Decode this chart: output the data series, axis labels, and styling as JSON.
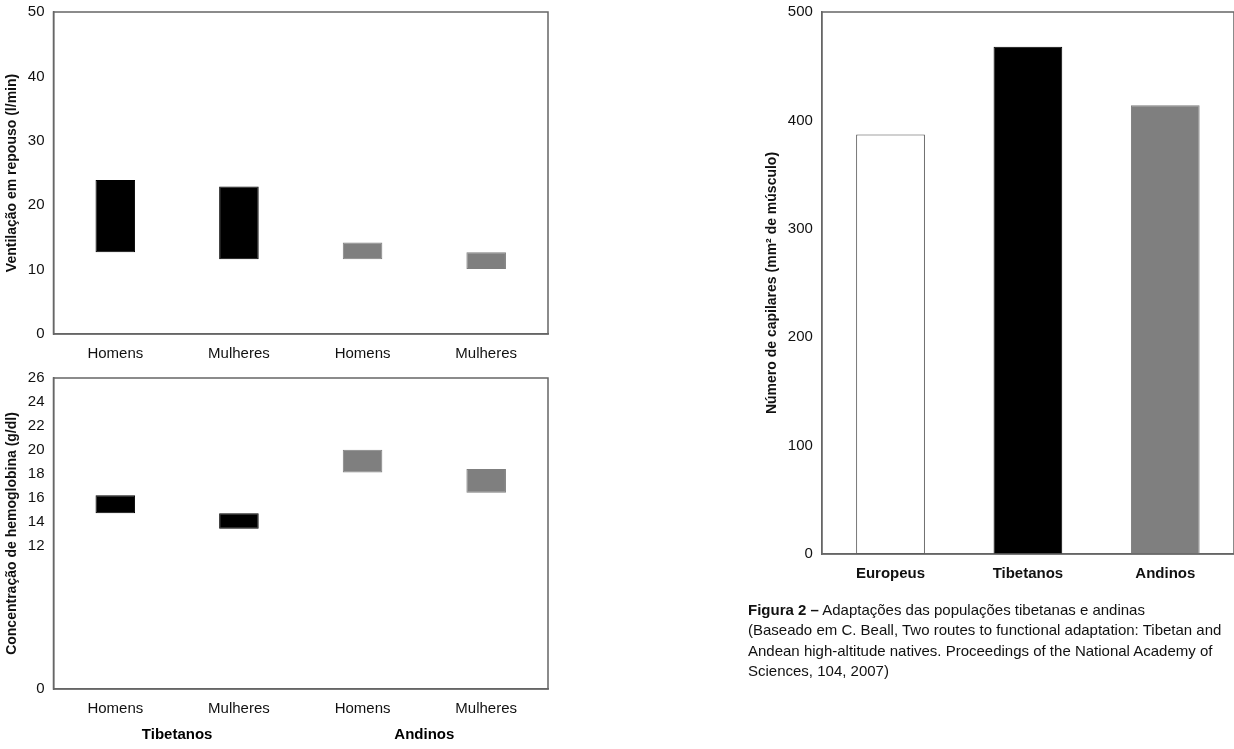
{
  "chart_data": [
    {
      "type": "bar",
      "ylabel": "Ventilação em repouso (l/min)",
      "categories": [
        "Homens",
        "Mulheres",
        "Homens",
        "Mulheres"
      ],
      "base": [
        12.7,
        11.6,
        11.6,
        10.1
      ],
      "values": [
        11.2,
        11.3,
        2.6,
        2.6
      ],
      "colors": [
        "#000000",
        "#000000",
        "#7f7f7f",
        "#7f7f7f"
      ],
      "ylim": [
        0,
        50
      ],
      "yticks": [
        0,
        10,
        20,
        30,
        40,
        50
      ],
      "grid": false,
      "legend": false
    },
    {
      "type": "bar",
      "ylabel": "Concentração de hemoglobina (g/dl)",
      "categories": [
        "Homens",
        "Mulheres",
        "Homens",
        "Mulheres"
      ],
      "base": [
        14.7,
        13.4,
        18.1,
        16.4
      ],
      "values": [
        1.5,
        1.3,
        1.9,
        2.0
      ],
      "colors": [
        "#000000",
        "#000000",
        "#7f7f7f",
        "#7f7f7f"
      ],
      "ylim": [
        0,
        26
      ],
      "yticks": [
        0,
        12,
        14,
        16,
        18,
        20,
        22,
        24,
        26
      ],
      "grid": false,
      "legend": false,
      "annotations": [
        "Tibetanos",
        "Andinos"
      ]
    },
    {
      "type": "bar",
      "ylabel": "Número de capilares (mm² de músculo)",
      "categories": [
        "Europeus",
        "Tibetanos",
        "Andinos"
      ],
      "values": [
        387,
        468,
        414
      ],
      "colors": [
        "#ffffff",
        "#000000",
        "#7f7f7f"
      ],
      "ylim": [
        0,
        500
      ],
      "yticks": [
        0,
        100,
        200,
        300,
        400,
        500
      ],
      "grid": false,
      "legend": false,
      "annotations": [
        "Figura 2 –",
        "Adaptações das populações tibetanas e andinas",
        "(Baseado em C. Beall, Two routes to functional adaptation: Tibetan and Andean high-altitude natives. Proceedings of the National Academy of Sciences, 104, 2007)"
      ]
    }
  ]
}
